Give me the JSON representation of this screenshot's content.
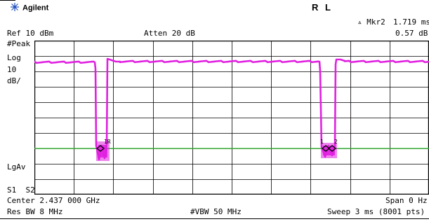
{
  "header": {
    "brand": "Agilent",
    "mode": "R L"
  },
  "marker": {
    "label": "▵ Mkr2",
    "time": "1.719 ms",
    "amplitude": "0.57 dB"
  },
  "settings": {
    "ref_level": "Ref 10 dBm",
    "attenuation": "Atten 20 dB",
    "detector": "#Peak",
    "scale_type": "Log",
    "scale_value": "10",
    "scale_unit": "dB/",
    "average": "LgAv",
    "sweep_flags": "S1  S2",
    "center": "Center 2.437 000 GHz",
    "span": "Span 0 Hz",
    "res_bw": "Res BW 8 MHz",
    "vbw": "#VBW 50 MHz",
    "sweep": "Sweep 3 ms (8001 pts)"
  },
  "display": {
    "trace_color": "#e020e0",
    "threshold_color": "#40d040",
    "grid_color": "#000000"
  }
}
